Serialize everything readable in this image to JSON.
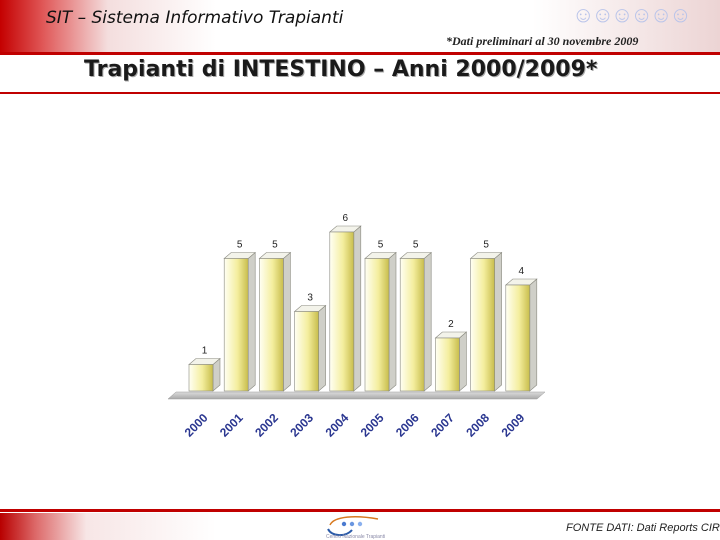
{
  "header": {
    "app_title": "SIT – Sistema Informativo Trapianti",
    "note": "*Dati preliminari al 30 novembre 2009"
  },
  "page_title": "Trapianti di INTESTINO – Anni 2000/2009*",
  "chart_data": {
    "type": "bar",
    "style": "3d",
    "categories": [
      "2000",
      "2001",
      "2002",
      "2003",
      "2004",
      "2005",
      "2006",
      "2007",
      "2008",
      "2009"
    ],
    "values": [
      1,
      5,
      5,
      3,
      6,
      5,
      5,
      2,
      5,
      4
    ],
    "ylim": [
      0,
      6
    ],
    "grid": false,
    "colors": {
      "bar_light": "#fffff4",
      "bar_mid": "#f4ee9e",
      "bar_dark": "#c8bd4c",
      "side": "#cfcfc8",
      "top": "#f3f3ea"
    }
  },
  "footer": {
    "source": "FONTE DATI: Dati Reports CIR",
    "logo_text": "Centro Nazionale Trapianti"
  },
  "brand": {
    "accent": "#c00000"
  }
}
